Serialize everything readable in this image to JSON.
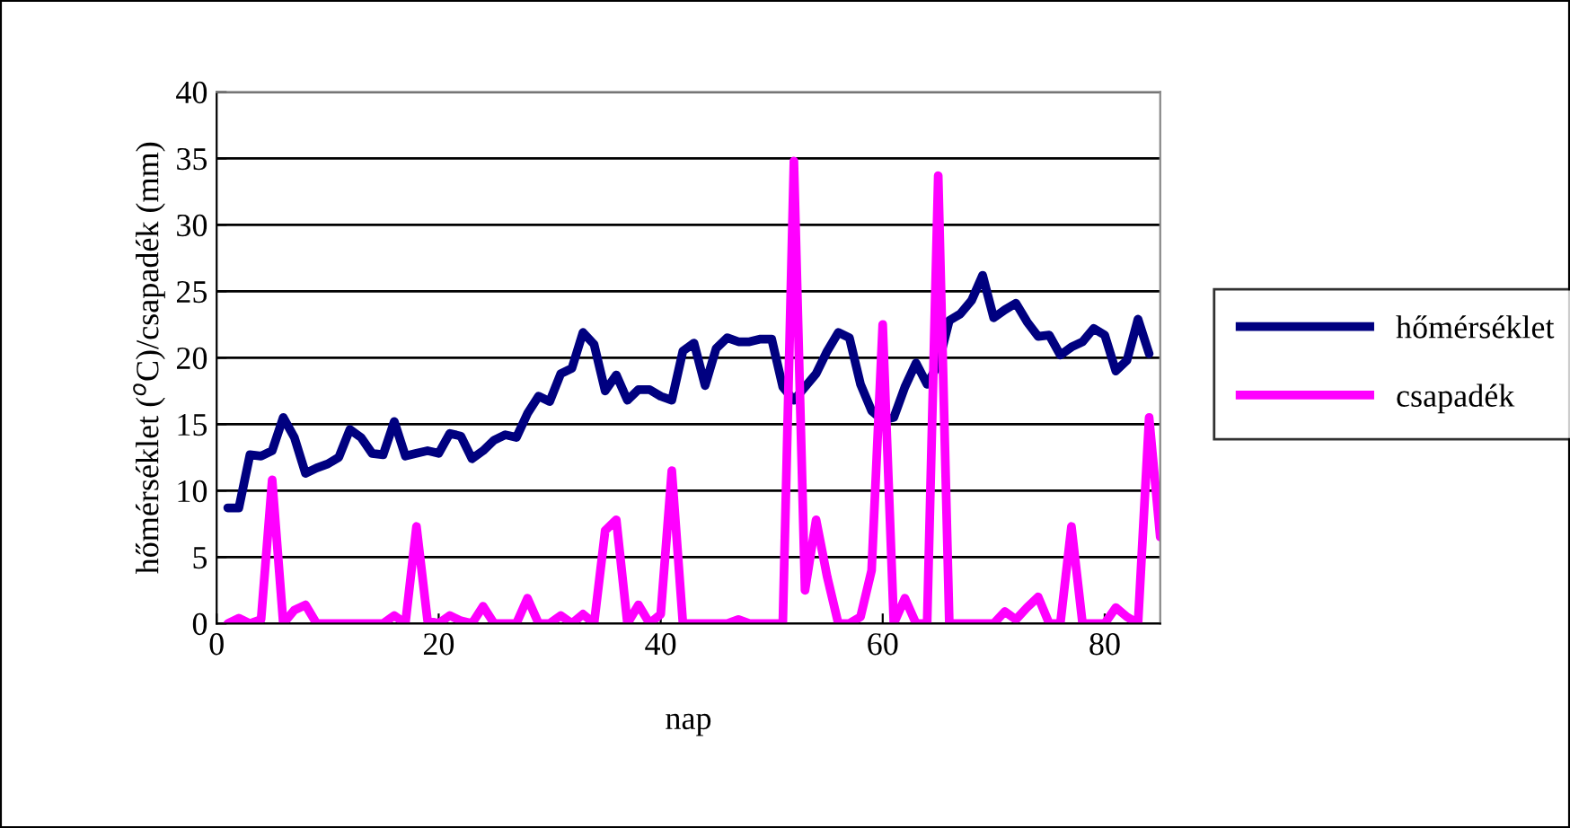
{
  "chart_data": {
    "type": "line",
    "xlabel": "nap",
    "ylabel": "hőmérséklet ($^{o}$C)/csapadék (mm)",
    "xlim": [
      0,
      85
    ],
    "xticks": [
      0,
      20,
      40,
      60,
      80
    ],
    "ylim": [
      0,
      40
    ],
    "yticks": [
      0,
      5,
      10,
      15,
      20,
      25,
      30,
      35,
      40
    ],
    "grid": "y",
    "legend": "right",
    "marker": "none",
    "line_style": "solid",
    "series": [
      {
        "name": "hőmérséklet",
        "color": "#000080",
        "x": [
          1,
          2,
          3,
          4,
          5,
          6,
          7,
          8,
          9,
          10,
          11,
          12,
          13,
          14,
          15,
          16,
          17,
          18,
          19,
          20,
          21,
          22,
          23,
          24,
          25,
          26,
          27,
          28,
          29,
          30,
          31,
          32,
          33,
          34,
          35,
          36,
          37,
          38,
          39,
          40,
          41,
          42,
          43,
          44,
          45,
          46,
          47,
          48,
          49,
          50,
          51,
          52,
          53,
          54,
          55,
          56,
          57,
          58,
          59,
          60,
          61,
          62,
          63,
          64,
          65,
          66,
          67,
          68,
          69,
          70,
          71,
          72,
          73,
          74,
          75,
          76,
          77,
          78,
          79,
          80,
          81,
          82,
          83,
          84
        ],
        "values": [
          8.7,
          8.7,
          12.7,
          12.6,
          13,
          15.5,
          14,
          11.3,
          11.7,
          12,
          12.5,
          14.6,
          14,
          12.8,
          12.7,
          15.2,
          12.6,
          12.8,
          13,
          12.8,
          14.3,
          14.1,
          12.4,
          13,
          13.8,
          14.2,
          14,
          15.8,
          17.1,
          16.7,
          18.8,
          19.2,
          21.9,
          21,
          17.5,
          18.7,
          16.8,
          17.6,
          17.6,
          17.1,
          16.8,
          20.5,
          21.1,
          17.9,
          20.7,
          21.5,
          21.2,
          21.2,
          21.4,
          21.4,
          17.8,
          16.8,
          17.8,
          18.8,
          20.5,
          21.9,
          21.5,
          18,
          16,
          15.3,
          15.5,
          17.8,
          19.6,
          18,
          19.5,
          22.8,
          23.3,
          24.3,
          26.2,
          23,
          23.6,
          24.1,
          22.7,
          21.6,
          21.7,
          20.2,
          20.8,
          21.2,
          22.2,
          21.7,
          19,
          19.8,
          22.9,
          20.3
        ]
      },
      {
        "name": "csapadék",
        "color": "#ff00ff",
        "x": [
          1,
          2,
          3,
          4,
          5,
          6,
          7,
          8,
          9,
          10,
          11,
          12,
          13,
          14,
          15,
          16,
          17,
          18,
          19,
          20,
          21,
          22,
          23,
          24,
          25,
          26,
          27,
          28,
          29,
          30,
          31,
          32,
          33,
          34,
          35,
          36,
          37,
          38,
          39,
          40,
          41,
          42,
          43,
          44,
          45,
          46,
          47,
          48,
          49,
          50,
          51,
          52,
          53,
          54,
          55,
          56,
          57,
          58,
          59,
          60,
          61,
          62,
          63,
          64,
          65,
          66,
          67,
          68,
          69,
          70,
          71,
          72,
          73,
          74,
          75,
          76,
          77,
          78,
          79,
          80,
          81,
          82,
          83,
          84,
          85
        ],
        "values": [
          0,
          0.4,
          0,
          0.3,
          10.8,
          0,
          1,
          1.4,
          0,
          0,
          0,
          0,
          0,
          0,
          0,
          0.6,
          0,
          7.3,
          0.2,
          0,
          0.6,
          0.2,
          0,
          1.3,
          0,
          0,
          0,
          1.9,
          0,
          0,
          0.6,
          0,
          0.7,
          0,
          7,
          7.8,
          0,
          1.4,
          0,
          0.7,
          11.5,
          0,
          0,
          0,
          0,
          0,
          0.3,
          0,
          0,
          0,
          0,
          34.8,
          2.5,
          7.8,
          3.5,
          0,
          0,
          0.5,
          4,
          22.5,
          0,
          1.9,
          0,
          0,
          33.7,
          0,
          0,
          0,
          0,
          0,
          0.9,
          0.3,
          1.2,
          2,
          0,
          0,
          7.3,
          0,
          0,
          0,
          1.2,
          0.5,
          0,
          15.5,
          6.5
        ]
      }
    ]
  }
}
